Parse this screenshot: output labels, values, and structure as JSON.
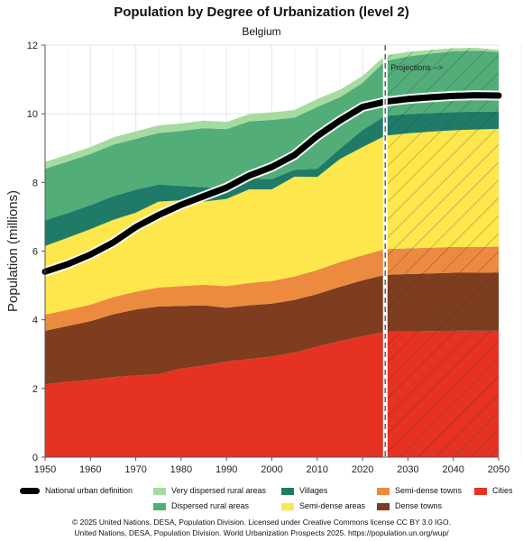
{
  "chart_data": {
    "type": "area",
    "title": "Population by Degree of Urbanization (level 2)",
    "subtitle": "Belgium",
    "xlabel": "",
    "ylabel": "Population (millions)",
    "xlim": [
      1950,
      2050
    ],
    "ylim": [
      0,
      12
    ],
    "x_ticks": [
      "1950",
      "1960",
      "1970",
      "1980",
      "1990",
      "2000",
      "2010",
      "2020",
      "2030",
      "2040",
      "2050"
    ],
    "y_ticks": [
      "0",
      "2",
      "4",
      "6",
      "8",
      "10",
      "12"
    ],
    "grid": "on",
    "projection_start": 2025,
    "projection_label": "Projections -->",
    "x": [
      1950,
      1955,
      1960,
      1965,
      1970,
      1975,
      1980,
      1985,
      1990,
      1995,
      2000,
      2005,
      2010,
      2015,
      2020,
      2025,
      2030,
      2035,
      2040,
      2045,
      2050
    ],
    "series": [
      {
        "name": "Cities",
        "color": "#e63222",
        "values": [
          2.12,
          2.2,
          2.25,
          2.33,
          2.38,
          2.42,
          2.58,
          2.67,
          2.78,
          2.86,
          2.93,
          3.05,
          3.22,
          3.38,
          3.52,
          3.65,
          3.66,
          3.67,
          3.68,
          3.68,
          3.68
        ]
      },
      {
        "name": "Dense towns",
        "color": "#7d3d1e",
        "values": [
          1.56,
          1.62,
          1.71,
          1.83,
          1.92,
          1.97,
          1.82,
          1.75,
          1.57,
          1.56,
          1.54,
          1.53,
          1.53,
          1.58,
          1.63,
          1.66,
          1.67,
          1.68,
          1.69,
          1.69,
          1.7
        ]
      },
      {
        "name": "Semi-dense towns",
        "color": "#ec8a3f",
        "values": [
          0.47,
          0.47,
          0.48,
          0.5,
          0.52,
          0.55,
          0.58,
          0.6,
          0.63,
          0.65,
          0.66,
          0.68,
          0.7,
          0.72,
          0.73,
          0.75,
          0.75,
          0.75,
          0.75,
          0.75,
          0.75
        ]
      },
      {
        "name": "Semi-dense areas",
        "color": "#fde74c",
        "values": [
          2.0,
          2.1,
          2.2,
          2.25,
          2.3,
          2.5,
          2.5,
          2.42,
          2.54,
          2.73,
          2.67,
          2.91,
          2.71,
          3.0,
          3.15,
          3.3,
          3.35,
          3.38,
          3.4,
          3.42,
          3.43
        ]
      },
      {
        "name": "Villages",
        "color": "#1f7b67",
        "values": [
          0.75,
          0.72,
          0.7,
          0.69,
          0.67,
          0.5,
          0.42,
          0.42,
          0.33,
          0.32,
          0.3,
          0.2,
          0.24,
          0.3,
          0.5,
          0.58,
          0.56,
          0.54,
          0.53,
          0.52,
          0.5
        ]
      },
      {
        "name": "Dispersed rural areas",
        "color": "#53ad78",
        "values": [
          1.5,
          1.5,
          1.49,
          1.5,
          1.48,
          1.5,
          1.6,
          1.72,
          1.7,
          1.66,
          1.72,
          1.52,
          1.8,
          1.5,
          1.37,
          1.6,
          1.68,
          1.73,
          1.77,
          1.78,
          1.74
        ]
      },
      {
        "name": "Very dispersed rural areas",
        "color": "#a6dba0",
        "values": [
          0.2,
          0.2,
          0.2,
          0.21,
          0.22,
          0.22,
          0.22,
          0.22,
          0.21,
          0.21,
          0.22,
          0.22,
          0.23,
          0.22,
          0.2,
          0.16,
          0.13,
          0.11,
          0.09,
          0.08,
          0.06
        ]
      }
    ],
    "line_series": {
      "name": "National urban definition",
      "color": "#000000",
      "values": [
        5.4,
        5.62,
        5.9,
        6.25,
        6.7,
        7.05,
        7.35,
        7.6,
        7.85,
        8.2,
        8.45,
        8.8,
        9.35,
        9.8,
        10.2,
        10.35,
        10.43,
        10.48,
        10.52,
        10.54,
        10.53
      ]
    },
    "legend": {
      "placement": "bottom",
      "items": [
        {
          "label": "National urban definition",
          "kind": "line",
          "color": "#000000"
        },
        {
          "label": "Very dispersed rural areas",
          "kind": "area",
          "color": "#a6dba0"
        },
        {
          "label": "Villages",
          "kind": "area",
          "color": "#1f7b67"
        },
        {
          "label": "Semi-dense towns",
          "kind": "area",
          "color": "#ec8a3f"
        },
        {
          "label": "Cities",
          "kind": "area",
          "color": "#e63222"
        },
        {
          "label": "Dispersed rural areas",
          "kind": "area",
          "color": "#53ad78"
        },
        {
          "label": "Semi-dense areas",
          "kind": "area",
          "color": "#fde74c"
        },
        {
          "label": "Dense towns",
          "kind": "area",
          "color": "#7d3d1e"
        }
      ]
    },
    "footer": [
      "© 2025 United Nations, DESA, Population Division. Licensed under Creative Commons license CC BY 3.0 IGO.",
      "United Nations, DESA, Population Division. World Urbanization Prospects 2025. https://population.un.org/wup/"
    ]
  }
}
